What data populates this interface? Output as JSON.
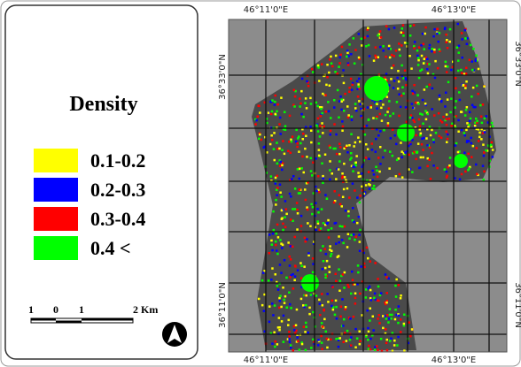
{
  "legend": {
    "title": "Density",
    "items": [
      {
        "label": "0.1-0.2",
        "color": "#ffff00"
      },
      {
        "label": "0.2-0.3",
        "color": "#0000ff"
      },
      {
        "label": "0.3-0.4",
        "color": "#ff0000"
      },
      {
        "label": "0.4 <",
        "color": "#00ff00"
      }
    ]
  },
  "scale_bar": {
    "labels": [
      "1",
      "0",
      "1",
      "2 Km"
    ]
  },
  "coordinates": {
    "top": [
      "46°11'0\"E",
      "46°13'0\"E"
    ],
    "bottom": [
      "46°11'0\"E",
      "46°13'0\"E"
    ],
    "left": [
      "36°33'0\"N",
      "36°11'0\"N"
    ],
    "right": [
      "36°33'0\"N",
      "36°11'0\"N"
    ]
  }
}
